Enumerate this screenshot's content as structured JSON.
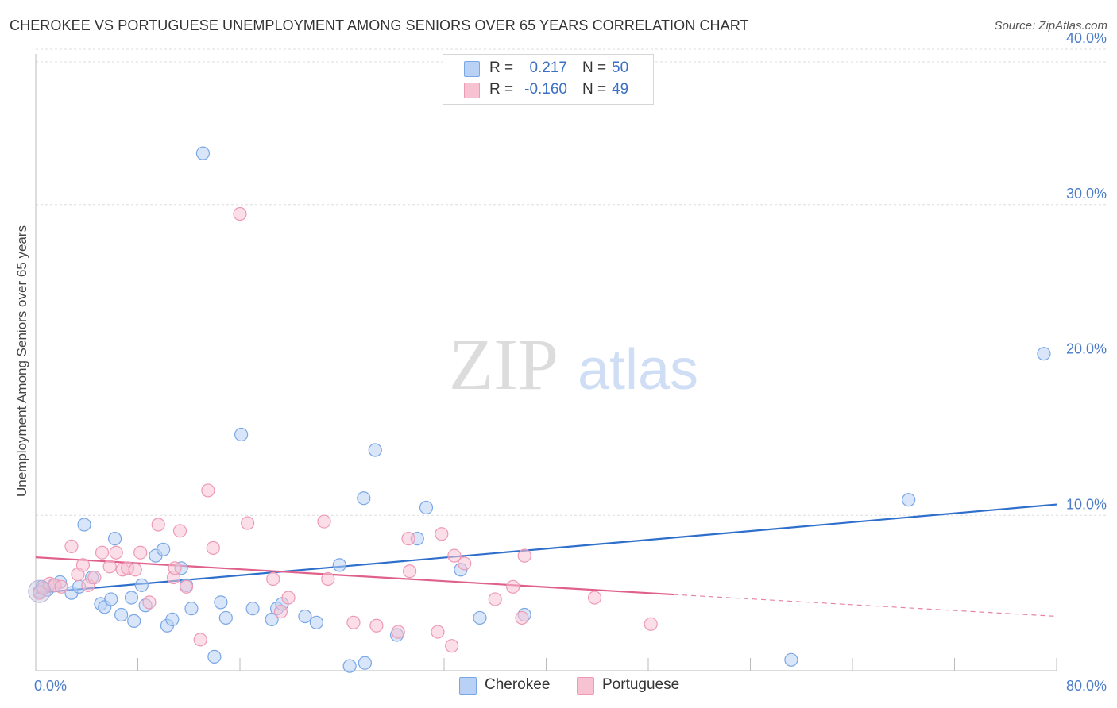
{
  "header": {
    "title": "CHEROKEE VS PORTUGUESE UNEMPLOYMENT AMONG SENIORS OVER 65 YEARS CORRELATION CHART",
    "source": "Source: ZipAtlas.com"
  },
  "watermark": {
    "part1": "ZIP",
    "part2": "atlas"
  },
  "legend": {
    "rows": [
      {
        "r_label": "R =",
        "r_value": "0.217",
        "n_label": "N =",
        "n_value": "50"
      },
      {
        "r_label": "R =",
        "r_value": "-0.160",
        "n_label": "N =",
        "n_value": "49"
      }
    ]
  },
  "chart_data": {
    "type": "scatter",
    "title": "CHEROKEE VS PORTUGUESE UNEMPLOYMENT AMONG SENIORS OVER 65 YEARS CORRELATION CHART",
    "xlabel": "",
    "ylabel": "Unemployment Among Seniors over 65 years",
    "xlim": [
      0,
      80
    ],
    "ylim": [
      0,
      40
    ],
    "x_tick_labels": [
      "0.0%",
      "80.0%"
    ],
    "y_ticks": [
      10,
      20,
      30,
      40
    ],
    "y_tick_labels": [
      "10.0%",
      "20.0%",
      "30.0%",
      "40.0%"
    ],
    "grid": "horizontal dashed",
    "legend_position": "top-center",
    "series": [
      {
        "name": "Cherokee",
        "color": "#7aa7e6",
        "fill": "#b9d1f4",
        "trend_color": "#2f6fcc",
        "trend": {
          "x0": 0,
          "y0": 5.0,
          "x1": 80,
          "y1": 10.7
        },
        "points": [
          [
            0.3,
            5.1
          ],
          [
            0.5,
            5.4
          ],
          [
            0.9,
            5.2
          ],
          [
            1.4,
            5.5
          ],
          [
            1.9,
            5.7
          ],
          [
            2.8,
            5.0
          ],
          [
            3.4,
            5.4
          ],
          [
            3.8,
            9.4
          ],
          [
            4.4,
            6.0
          ],
          [
            5.1,
            4.3
          ],
          [
            5.4,
            4.1
          ],
          [
            5.9,
            4.6
          ],
          [
            6.2,
            8.5
          ],
          [
            6.7,
            3.6
          ],
          [
            7.5,
            4.7
          ],
          [
            7.7,
            3.2
          ],
          [
            8.3,
            5.5
          ],
          [
            8.6,
            4.2
          ],
          [
            9.4,
            7.4
          ],
          [
            10.0,
            7.8
          ],
          [
            10.3,
            2.9
          ],
          [
            10.7,
            3.3
          ],
          [
            11.4,
            6.6
          ],
          [
            11.8,
            5.5
          ],
          [
            12.2,
            4.0
          ],
          [
            13.1,
            33.3
          ],
          [
            14.0,
            0.9
          ],
          [
            14.5,
            4.4
          ],
          [
            14.9,
            3.4
          ],
          [
            16.1,
            15.2
          ],
          [
            17.0,
            4.0
          ],
          [
            18.5,
            3.3
          ],
          [
            18.9,
            4.0
          ],
          [
            19.3,
            4.3
          ],
          [
            21.1,
            3.5
          ],
          [
            22.0,
            3.1
          ],
          [
            23.8,
            6.8
          ],
          [
            24.6,
            0.3
          ],
          [
            25.7,
            11.1
          ],
          [
            25.8,
            0.5
          ],
          [
            26.6,
            14.2
          ],
          [
            28.3,
            2.3
          ],
          [
            29.9,
            8.5
          ],
          [
            30.6,
            10.5
          ],
          [
            33.3,
            6.5
          ],
          [
            34.8,
            3.4
          ],
          [
            38.3,
            3.6
          ],
          [
            59.2,
            0.7
          ],
          [
            68.4,
            11.0
          ],
          [
            79.0,
            20.4
          ]
        ]
      },
      {
        "name": "Portuguese",
        "color": "#ee9ab5",
        "fill": "#f7c3d3",
        "trend_color": "#e0608c",
        "trend": {
          "x0": 0,
          "y0": 7.3,
          "x1": 50,
          "y1": 4.9
        },
        "trend_ext": {
          "x0": 50,
          "y0": 4.9,
          "x1": 80,
          "y1": 3.5
        },
        "points": [
          [
            0.3,
            5.0
          ],
          [
            0.6,
            5.3
          ],
          [
            1.1,
            5.6
          ],
          [
            1.5,
            5.5
          ],
          [
            2.0,
            5.4
          ],
          [
            2.8,
            8.0
          ],
          [
            3.3,
            6.2
          ],
          [
            3.7,
            6.8
          ],
          [
            4.1,
            5.5
          ],
          [
            4.6,
            6.0
          ],
          [
            5.2,
            7.6
          ],
          [
            5.8,
            6.7
          ],
          [
            6.3,
            7.6
          ],
          [
            6.8,
            6.5
          ],
          [
            7.2,
            6.6
          ],
          [
            7.8,
            6.5
          ],
          [
            8.2,
            7.6
          ],
          [
            8.9,
            4.4
          ],
          [
            9.6,
            9.4
          ],
          [
            10.8,
            6.0
          ],
          [
            10.9,
            6.6
          ],
          [
            11.3,
            9.0
          ],
          [
            11.8,
            5.4
          ],
          [
            12.9,
            2.0
          ],
          [
            13.5,
            11.6
          ],
          [
            13.9,
            7.9
          ],
          [
            16.0,
            29.4
          ],
          [
            16.6,
            9.5
          ],
          [
            18.6,
            5.9
          ],
          [
            19.2,
            3.8
          ],
          [
            19.8,
            4.7
          ],
          [
            22.6,
            9.6
          ],
          [
            22.9,
            5.9
          ],
          [
            24.9,
            3.1
          ],
          [
            26.7,
            2.9
          ],
          [
            28.4,
            2.5
          ],
          [
            29.2,
            8.5
          ],
          [
            29.3,
            6.4
          ],
          [
            31.5,
            2.5
          ],
          [
            31.8,
            8.8
          ],
          [
            32.6,
            1.6
          ],
          [
            32.8,
            7.4
          ],
          [
            33.6,
            6.9
          ],
          [
            36.0,
            4.6
          ],
          [
            37.4,
            5.4
          ],
          [
            38.1,
            3.4
          ],
          [
            38.3,
            7.4
          ],
          [
            43.8,
            4.7
          ],
          [
            48.2,
            3.0
          ]
        ]
      }
    ]
  }
}
